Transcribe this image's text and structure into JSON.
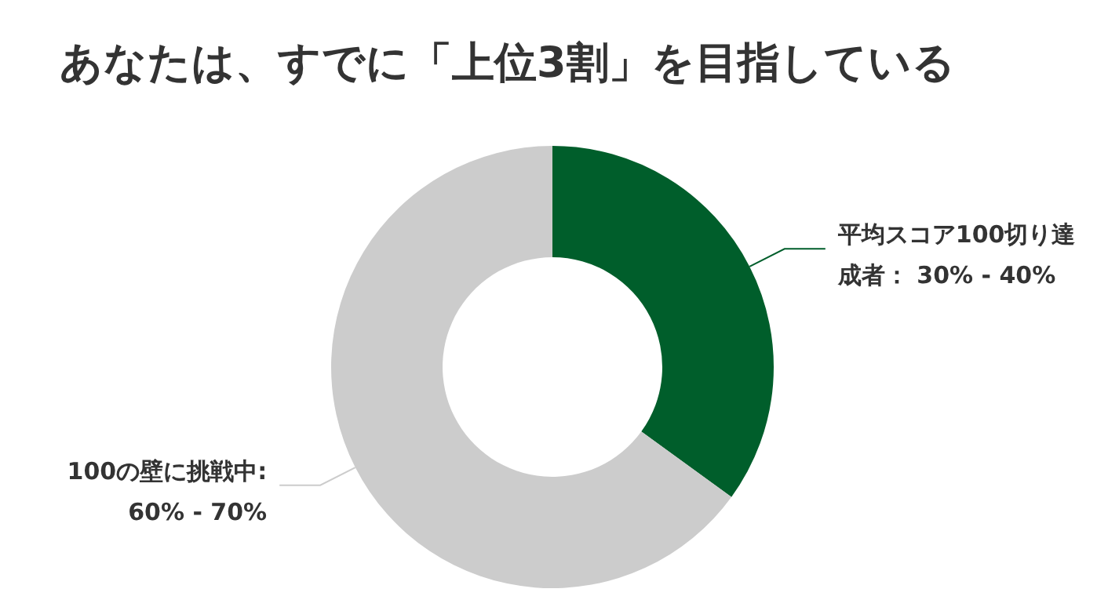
{
  "chart_data": {
    "type": "donut",
    "title": "あなたは、すでに「上位3割」を目指している",
    "categories": [
      "平均スコア100切り達成者： 30% - 40%",
      "100の壁に挑戦中: 60% - 70%"
    ],
    "values": [
      35,
      65
    ],
    "colors": [
      "#005e2b",
      "#cccccc"
    ]
  }
}
